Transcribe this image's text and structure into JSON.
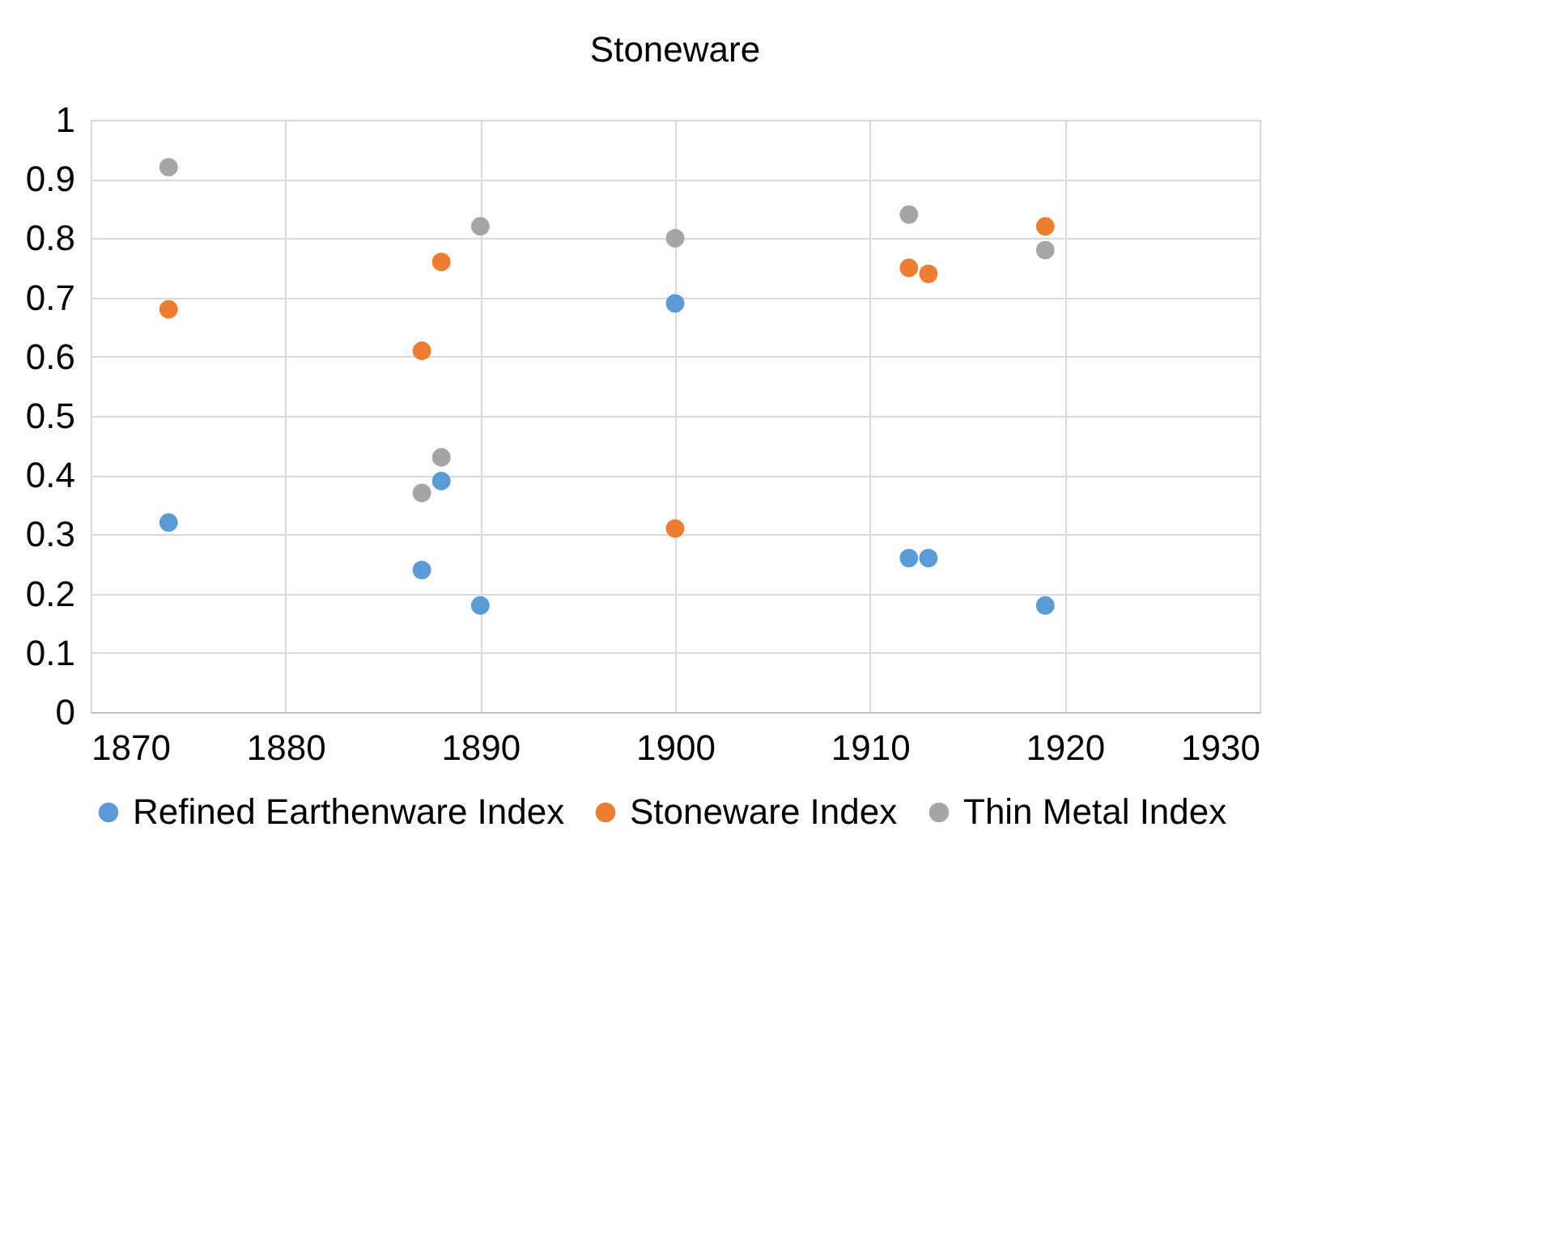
{
  "chart_data": {
    "type": "scatter",
    "title": "Stoneware",
    "xlim": [
      1870,
      1930
    ],
    "xticks": [
      1870,
      1880,
      1890,
      1900,
      1910,
      1920,
      1930
    ],
    "ylim": [
      0,
      1
    ],
    "yticks": [
      0,
      0.1,
      0.2,
      0.3,
      0.4,
      0.5,
      0.6,
      0.7,
      0.8,
      0.9,
      1
    ],
    "grid": true,
    "legend": "bottom",
    "marker": "circle",
    "series": [
      {
        "name": "Refined Earthenware Index",
        "color": "#5b9bd5",
        "x": [
          1874,
          1887,
          1888,
          1890,
          1900,
          1912,
          1913,
          1919
        ],
        "values": [
          0.32,
          0.24,
          0.39,
          0.18,
          0.69,
          0.26,
          0.26,
          0.18
        ]
      },
      {
        "name": "Stoneware Index",
        "color": "#ed7d31",
        "x": [
          1874,
          1887,
          1888,
          1900,
          1912,
          1913,
          1919
        ],
        "values": [
          0.68,
          0.61,
          0.76,
          0.31,
          0.75,
          0.74,
          0.82
        ]
      },
      {
        "name": "Thin Metal Index",
        "color": "#a5a5a5",
        "x": [
          1874,
          1887,
          1888,
          1890,
          1900,
          1912,
          1919
        ],
        "values": [
          0.92,
          0.37,
          0.43,
          0.82,
          0.8,
          0.84,
          0.78
        ]
      }
    ]
  }
}
